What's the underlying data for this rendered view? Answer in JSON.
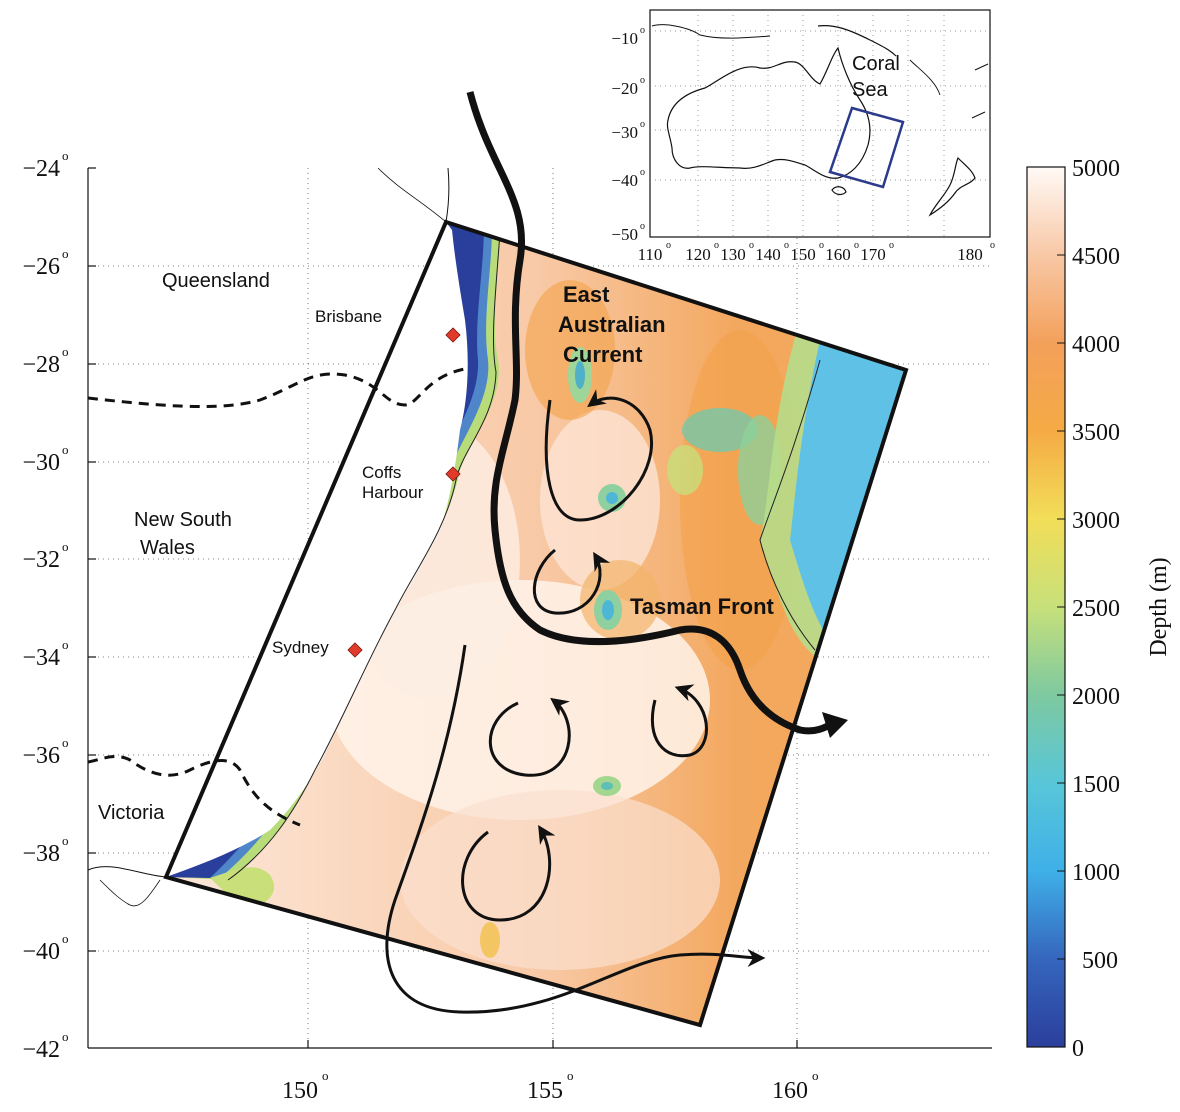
{
  "main_map": {
    "y_ticks": [
      "−24",
      "−26",
      "−28",
      "−30",
      "−32",
      "−34",
      "−36",
      "−38",
      "−40",
      "−42"
    ],
    "x_ticks": [
      "150",
      "155",
      "160"
    ],
    "degree": "o",
    "labels": {
      "queensland": "Queensland",
      "brisbane": "Brisbane",
      "coffs_1": "Coffs",
      "coffs_2": "Harbour",
      "nsw_1": "New South",
      "nsw_2": "Wales",
      "sydney": "Sydney",
      "victoria": "Victoria",
      "eac_1": "East",
      "eac_2": "Australian",
      "eac_3": "Current",
      "tasman": "Tasman Front"
    }
  },
  "inset_map": {
    "y_ticks": [
      "−10",
      "−20",
      "−30",
      "−40",
      "−50"
    ],
    "x_ticks": [
      "110",
      "120",
      "130",
      "140",
      "150",
      "160",
      "170",
      "180"
    ],
    "label_1": "Coral",
    "label_2": "Sea",
    "box_color": "#2b3a8c"
  },
  "colorbar": {
    "label": "Depth (m)",
    "ticks": [
      "5000",
      "4500",
      "4000",
      "3500",
      "3000",
      "2500",
      "2000",
      "1500",
      "1000",
      "500",
      "0"
    ]
  },
  "colors": {
    "shelf": "#2a3f9c",
    "deep": "#f5b07a",
    "abyss": "#fde7d8",
    "ridge": "#f2a23a",
    "shallow_sea": "#5fc1e6",
    "city_marker": "#e23a2a"
  }
}
